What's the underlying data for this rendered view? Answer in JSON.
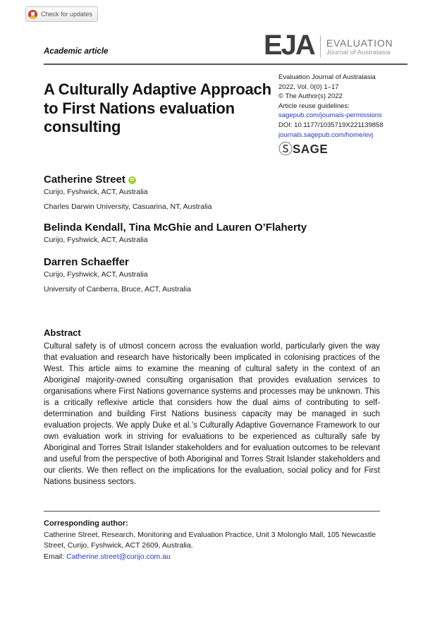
{
  "badge": {
    "label": "Check for updates"
  },
  "kicker": "Academic article",
  "journal_logo": {
    "initials": "EJA",
    "name": "EVALUATION",
    "subtitle": "Journal of Australasia"
  },
  "title": "A Culturally Adaptive Approach to First Nations evaluation consulting",
  "meta": {
    "journal": "Evaluation Journal of Australasia",
    "volume": "2022, Vol. 0(0) 1–17",
    "copyright": "© The Author(s) 2022",
    "reuse_label": "Article reuse guidelines:",
    "permissions_link": "sagepub.com/journals-permissions",
    "doi": "DOI: 10.1177/1035719X221139858",
    "home_link": "journals.sagepub.com/home/evj",
    "publisher_initial": "Ⓢ",
    "publisher": "SAGE"
  },
  "authors": {
    "groups": [
      {
        "name": "Catherine Street",
        "orcid_label": "iD",
        "affiliations": [
          "Curijo, Fyshwick, ACT, Australia",
          "Charles Darwin University, Casuarina, NT, Australia"
        ]
      },
      {
        "name": "Belinda Kendall, Tina McGhie and Lauren O’Flaherty",
        "affiliations": [
          "Curijo, Fyshwick, ACT, Australia"
        ]
      },
      {
        "name": "Darren Schaeffer",
        "affiliations": [
          "Curijo, Fyshwick, ACT, Australia",
          "University of Canberra, Bruce, ACT, Australia"
        ]
      }
    ]
  },
  "abstract": {
    "heading": "Abstract",
    "text": "Cultural safety is of utmost concern across the evaluation world, particularly given the way that evaluation and research have historically been implicated in colonising practices of the West. This article aims to examine the meaning of cultural safety in the context of an Aboriginal majority-owned consulting organisation that provides evaluation services to organisations where First Nations governance systems and processes may be unknown. This is a critically reflexive article that considers how the dual aims of contributing to self-determination and building First Nations business capacity may be managed in such evaluation projects. We apply Duke et al.’s Culturally Adaptive Governance Framework to our own evaluation work in striving for evaluations to be experienced as culturally safe by Aboriginal and Torres Strait Islander stakeholders and for evaluation outcomes to be relevant and useful from the perspective of both Aboriginal and Torres Strait Islander stakeholders and our clients. We then reflect on the implications for the evaluation, social policy and for First Nations business sectors."
  },
  "corresponding": {
    "heading": "Corresponding author:",
    "text": "Catherine Street, Research, Monitoring and Evaluation Practice, Unit 3 Molonglo Mall, 105 Newcastle Street, Curijo, Fyshwick, ACT 2609, Australia.",
    "email_label": "Email: ",
    "email": "Catherine.street@curijo.com.au"
  },
  "colors": {
    "link": "#2b35c9",
    "orcid": "#a6ce39",
    "crossmark_red": "#cf3e33",
    "crossmark_yellow": "#efb23d"
  }
}
